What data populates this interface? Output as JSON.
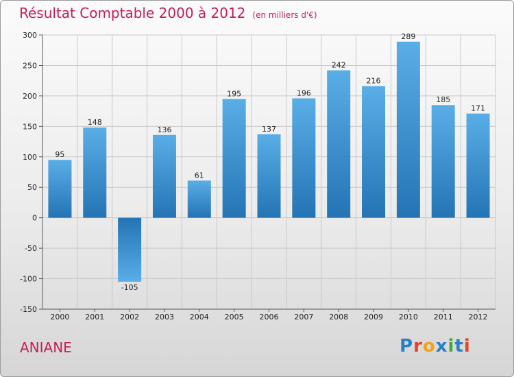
{
  "header": {
    "title": "Résultat Comptable 2000 à 2012",
    "subtitle": "(en milliers d'€)"
  },
  "footer": {
    "commune": "ANIANE",
    "brand_parts": [
      "P",
      "r",
      "o",
      "x",
      "i",
      "t",
      "i"
    ]
  },
  "colors": {
    "title": "#c41e5a",
    "bar_light": "#5aaee6",
    "bar_dark": "#2474b5",
    "grid": "#c8c8c8"
  },
  "chart_data": {
    "type": "bar",
    "title": "Résultat Comptable 2000 à 2012",
    "subtitle": "(en milliers d'€)",
    "xlabel": "",
    "ylabel": "",
    "categories": [
      "2000",
      "2001",
      "2002",
      "2003",
      "2004",
      "2005",
      "2006",
      "2007",
      "2008",
      "2009",
      "2010",
      "2011",
      "2012"
    ],
    "values": [
      95,
      148,
      -105,
      136,
      61,
      195,
      137,
      196,
      242,
      216,
      289,
      185,
      171
    ],
    "value_labels": [
      "95",
      "148",
      "-105",
      "136",
      "61",
      "195",
      "137",
      "196",
      "242",
      "216",
      "289",
      "185",
      "171"
    ],
    "ylim": [
      -150,
      300
    ],
    "yticks": [
      300,
      250,
      200,
      150,
      100,
      50,
      0,
      -50,
      -100,
      -150
    ],
    "ytick_labels": [
      "300",
      "250",
      "200",
      "150",
      "100",
      "50",
      "0",
      "-50",
      "-100",
      "-150"
    ],
    "grid": true,
    "legend": "none"
  }
}
